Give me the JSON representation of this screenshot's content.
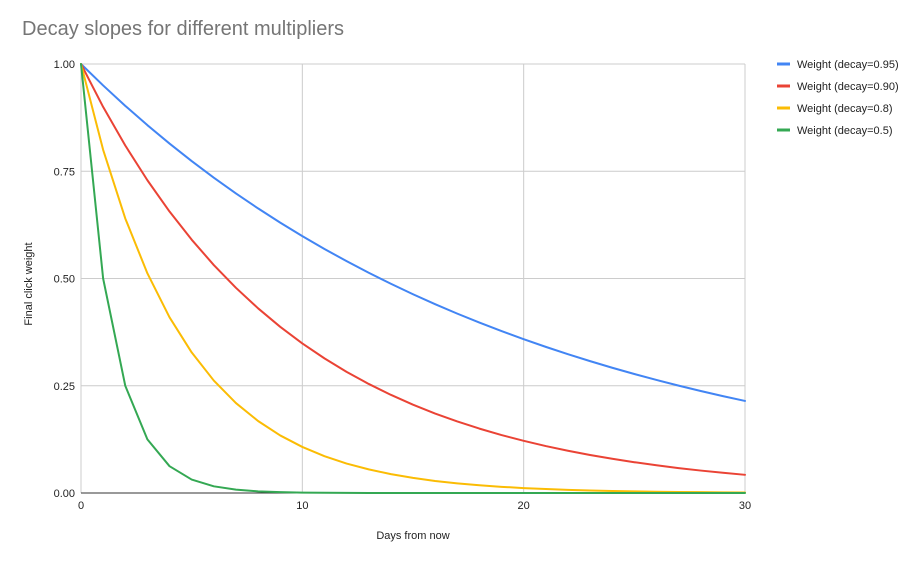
{
  "chart_data": {
    "type": "line",
    "title": "Decay slopes for different multipliers",
    "xlabel": "Days from now",
    "ylabel": "Final click weight",
    "xlim": [
      0,
      30
    ],
    "ylim": [
      0,
      1
    ],
    "x_ticks": [
      "0",
      "10",
      "20",
      "30"
    ],
    "y_ticks": [
      "0.00",
      "0.25",
      "0.50",
      "0.75",
      "1.00"
    ],
    "grid": true,
    "legend_position": "right",
    "x": [
      0,
      1,
      2,
      3,
      4,
      5,
      6,
      7,
      8,
      9,
      10,
      11,
      12,
      13,
      14,
      15,
      16,
      17,
      18,
      19,
      20,
      21,
      22,
      23,
      24,
      25,
      26,
      27,
      28,
      29,
      30
    ],
    "series": [
      {
        "name": "Weight (decay=0.95)",
        "color": "#4285F4",
        "values": [
          1.0,
          0.95,
          0.9025,
          0.8574,
          0.8145,
          0.7738,
          0.7351,
          0.6983,
          0.6634,
          0.6302,
          0.5987,
          0.5688,
          0.5404,
          0.5133,
          0.4877,
          0.4633,
          0.4401,
          0.4181,
          0.3972,
          0.3774,
          0.3585,
          0.3406,
          0.3235,
          0.3074,
          0.292,
          0.2774,
          0.2635,
          0.2503,
          0.2378,
          0.2259,
          0.2146
        ]
      },
      {
        "name": "Weight (decay=0.90)",
        "color": "#EA4335",
        "values": [
          1.0,
          0.9,
          0.81,
          0.729,
          0.6561,
          0.5905,
          0.5314,
          0.4783,
          0.4305,
          0.3874,
          0.3487,
          0.3138,
          0.2824,
          0.2542,
          0.2288,
          0.2059,
          0.1853,
          0.1668,
          0.1501,
          0.1351,
          0.1216,
          0.1094,
          0.0985,
          0.0886,
          0.0798,
          0.0718,
          0.0646,
          0.0581,
          0.0523,
          0.0471,
          0.0424
        ]
      },
      {
        "name": "Weight (decay=0.8)",
        "color": "#FBBC04",
        "values": [
          1.0,
          0.8,
          0.64,
          0.512,
          0.4096,
          0.3277,
          0.2621,
          0.2097,
          0.1678,
          0.1342,
          0.1074,
          0.0859,
          0.0687,
          0.055,
          0.044,
          0.0352,
          0.0281,
          0.0225,
          0.018,
          0.0144,
          0.0115,
          0.0092,
          0.0074,
          0.0059,
          0.0047,
          0.0038,
          0.003,
          0.0024,
          0.0019,
          0.0015,
          0.0012
        ]
      },
      {
        "name": "Weight (decay=0.5)",
        "color": "#34A853",
        "values": [
          1.0,
          0.5,
          0.25,
          0.125,
          0.0625,
          0.0313,
          0.0156,
          0.0078,
          0.0039,
          0.002,
          0.001,
          0.0005,
          0.0002,
          0.0001,
          0.0001,
          0.0,
          0.0,
          0.0,
          0.0,
          0.0,
          0.0,
          0.0,
          0.0,
          0.0,
          0.0,
          0.0,
          0.0,
          0.0,
          0.0,
          0.0,
          0.0
        ]
      }
    ]
  }
}
